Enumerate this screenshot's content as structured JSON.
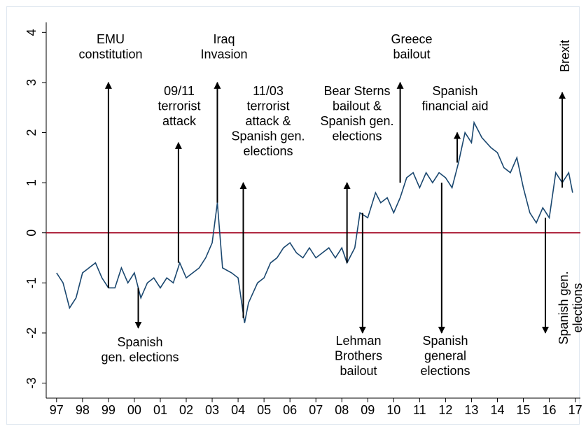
{
  "chart_data": {
    "type": "line",
    "x": [
      1997.0,
      1997.25,
      1997.5,
      1997.75,
      1998.0,
      1998.25,
      1998.5,
      1998.75,
      1999.0,
      1999.25,
      1999.5,
      1999.75,
      2000.0,
      2000.25,
      2000.5,
      2000.75,
      2001.0,
      2001.25,
      2001.5,
      2001.75,
      2002.0,
      2002.25,
      2002.5,
      2002.75,
      2003.0,
      2003.2,
      2003.4,
      2003.75,
      2004.0,
      2004.25,
      2004.4,
      2004.75,
      2005.0,
      2005.25,
      2005.5,
      2005.75,
      2006.0,
      2006.25,
      2006.5,
      2006.75,
      2007.0,
      2007.25,
      2007.5,
      2007.75,
      2008.0,
      2008.2,
      2008.5,
      2008.7,
      2009.0,
      2009.3,
      2009.5,
      2009.75,
      2010.0,
      2010.25,
      2010.5,
      2010.75,
      2011.0,
      2011.25,
      2011.5,
      2011.75,
      2012.0,
      2012.25,
      2012.5,
      2012.75,
      2013.0,
      2013.1,
      2013.4,
      2013.75,
      2014.0,
      2014.25,
      2014.5,
      2014.75,
      2015.0,
      2015.25,
      2015.5,
      2015.75,
      2016.0,
      2016.25,
      2016.5,
      2016.75,
      2016.9
    ],
    "values": [
      -0.8,
      -1.0,
      -1.5,
      -1.3,
      -0.8,
      -0.7,
      -0.6,
      -0.9,
      -1.1,
      -1.1,
      -0.7,
      -1.0,
      -0.8,
      -1.3,
      -1.0,
      -0.9,
      -1.1,
      -0.9,
      -1.0,
      -0.6,
      -0.9,
      -0.8,
      -0.7,
      -0.5,
      -0.2,
      0.6,
      -0.7,
      -0.8,
      -0.9,
      -1.8,
      -1.4,
      -1.0,
      -0.9,
      -0.6,
      -0.5,
      -0.3,
      -0.2,
      -0.4,
      -0.5,
      -0.3,
      -0.5,
      -0.4,
      -0.3,
      -0.5,
      -0.3,
      -0.6,
      -0.3,
      0.4,
      0.3,
      0.8,
      0.6,
      0.7,
      0.4,
      0.7,
      1.1,
      1.2,
      0.9,
      1.2,
      1.0,
      1.2,
      1.1,
      0.9,
      1.4,
      2.0,
      1.8,
      2.2,
      1.9,
      1.7,
      1.6,
      1.3,
      1.2,
      1.5,
      0.9,
      0.4,
      0.2,
      0.5,
      0.3,
      1.2,
      1.0,
      1.2,
      0.8
    ],
    "color": "#1a476f",
    "hline": 0,
    "hline_color": "#a0001c",
    "xlim": [
      1996.6,
      2017.2
    ],
    "ylim": [
      -3.3,
      4.2
    ],
    "xticks": [
      {
        "value": 1997,
        "label": "97"
      },
      {
        "value": 1998,
        "label": "98"
      },
      {
        "value": 1999,
        "label": "99"
      },
      {
        "value": 2000,
        "label": "00"
      },
      {
        "value": 2001,
        "label": "01"
      },
      {
        "value": 2002,
        "label": "02"
      },
      {
        "value": 2003,
        "label": "03"
      },
      {
        "value": 2004,
        "label": "04"
      },
      {
        "value": 2005,
        "label": "05"
      },
      {
        "value": 2006,
        "label": "06"
      },
      {
        "value": 2007,
        "label": "07"
      },
      {
        "value": 2008,
        "label": "08"
      },
      {
        "value": 2009,
        "label": "09"
      },
      {
        "value": 2010,
        "label": "10"
      },
      {
        "value": 2011,
        "label": "11"
      },
      {
        "value": 2012,
        "label": "12"
      },
      {
        "value": 2013,
        "label": "13"
      },
      {
        "value": 2014,
        "label": "14"
      },
      {
        "value": 2015,
        "label": "15"
      },
      {
        "value": 2016,
        "label": "16"
      },
      {
        "value": 2017,
        "label": "17"
      }
    ],
    "yticks": [
      -3,
      -2,
      -1,
      0,
      1,
      2,
      3,
      4
    ],
    "annotations": [
      {
        "lines": [
          "EMU",
          "constitution"
        ],
        "x": 1999.0,
        "from": -1.1,
        "to": 3.0
      },
      {
        "lines": [
          "Spanish",
          "gen. elections"
        ],
        "x": 2000.15,
        "from": -1.1,
        "to": -1.9
      },
      {
        "lines": [
          "09/11",
          "terrorist",
          "attack"
        ],
        "x": 2001.7,
        "from": -0.6,
        "to": 1.8
      },
      {
        "lines": [
          "Iraq",
          "Invasion"
        ],
        "x": 2003.2,
        "from": 0.6,
        "to": 3.0
      },
      {
        "lines": [
          "11/03",
          "terrorist",
          "attack &",
          "Spanish gen.",
          "elections"
        ],
        "x": 2004.2,
        "from": -1.7,
        "to": 1.0
      },
      {
        "lines": [
          "Bear Sterns",
          "bailout &",
          "Spanish gen.",
          "elections"
        ],
        "x": 2008.2,
        "from": -0.6,
        "to": 1.0
      },
      {
        "lines": [
          "Lehman",
          "Brothers",
          "bailout"
        ],
        "x": 2008.8,
        "from": 0.4,
        "to": -2.0
      },
      {
        "lines": [
          "Greece",
          "bailout"
        ],
        "x": 2010.25,
        "from": 1.0,
        "to": 3.0
      },
      {
        "lines": [
          "Spanish",
          "general",
          "elections"
        ],
        "x": 2011.85,
        "from": 1.0,
        "to": -2.0
      },
      {
        "lines": [
          "Spanish",
          "financial aid"
        ],
        "x": 2012.45,
        "from": 1.4,
        "to": 2.0
      },
      {
        "lines": [
          "Spanish gen.",
          "elections"
        ],
        "x": 2015.85,
        "from": 0.3,
        "to": -2.0,
        "rotated": true
      },
      {
        "lines": [
          "Brexit"
        ],
        "x": 2016.5,
        "from": 0.9,
        "to": 2.8,
        "rotated": true
      }
    ]
  }
}
